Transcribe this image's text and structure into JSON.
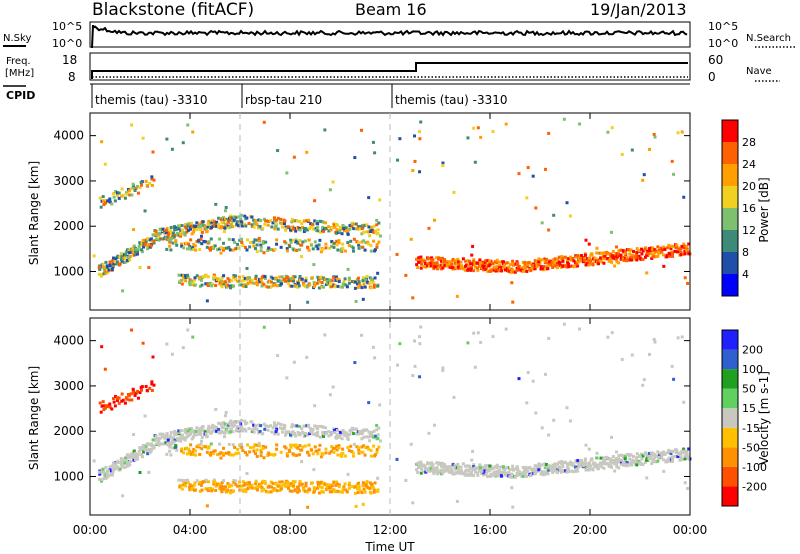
{
  "header": {
    "station": "Blackstone (fitACF)",
    "beam": "Beam 16",
    "date": "19/Jan/2013"
  },
  "noise_panel": {
    "left_label": "N.Sky",
    "right_label": "N.Search",
    "left_ticks": [
      "10^5",
      "10^0"
    ],
    "right_ticks": [
      "10^5",
      "10^0"
    ]
  },
  "freq_panel": {
    "left_label_1": "Freq.",
    "left_label_2": "[MHz]",
    "left_ticks": [
      "18",
      "8"
    ],
    "right_label": "Nave",
    "right_ticks": [
      "60",
      "0"
    ]
  },
  "cpid_panel": {
    "label": "CPID",
    "segments": [
      {
        "start_hour": 0,
        "end_hour": 6,
        "label": "themis (tau) -3310"
      },
      {
        "start_hour": 6,
        "end_hour": 12,
        "label": "rbsp-tau 210"
      },
      {
        "start_hour": 12,
        "end_hour": 24,
        "label": "themis (tau) -3310"
      }
    ]
  },
  "colors": {
    "power_scale": [
      "#0000ff",
      "#1f4fa8",
      "#3e8a78",
      "#7dc070",
      "#f0d020",
      "#ffa000",
      "#ff6000",
      "#ff0000"
    ],
    "velocity_scale": [
      "#2020ff",
      "#3060d0",
      "#20a020",
      "#60d060",
      "#c8c8c0",
      "#ffc000",
      "#ff9000",
      "#ff5000",
      "#ff0000"
    ]
  },
  "chart_data": [
    {
      "type": "heatmap",
      "name": "power",
      "ylabel": "Slant Range [km]",
      "yticks": [
        "1000",
        "2000",
        "3000",
        "4000"
      ],
      "ylim": [
        150,
        4500
      ],
      "colorbar_label": "Power [dB]",
      "colorbar_ticks": [
        "4",
        "8",
        "12",
        "16",
        "20",
        "24",
        "28"
      ],
      "colorbar_range": [
        0,
        32
      ]
    },
    {
      "type": "heatmap",
      "name": "velocity",
      "ylabel": "Slant Range [km]",
      "yticks": [
        "1000",
        "2000",
        "3000",
        "4000"
      ],
      "ylim": [
        150,
        4500
      ],
      "colorbar_label": "Velocity [m s-1]",
      "colorbar_ticks": [
        "200",
        "100",
        "50",
        "15",
        "-15",
        "-50",
        "-100",
        "-200"
      ]
    }
  ],
  "xaxis": {
    "label": "Time UT",
    "ticks": [
      "00:00",
      "04:00",
      "08:00",
      "12:00",
      "16:00",
      "20:00",
      "00:00"
    ],
    "xlim_hours": [
      0,
      24
    ]
  }
}
